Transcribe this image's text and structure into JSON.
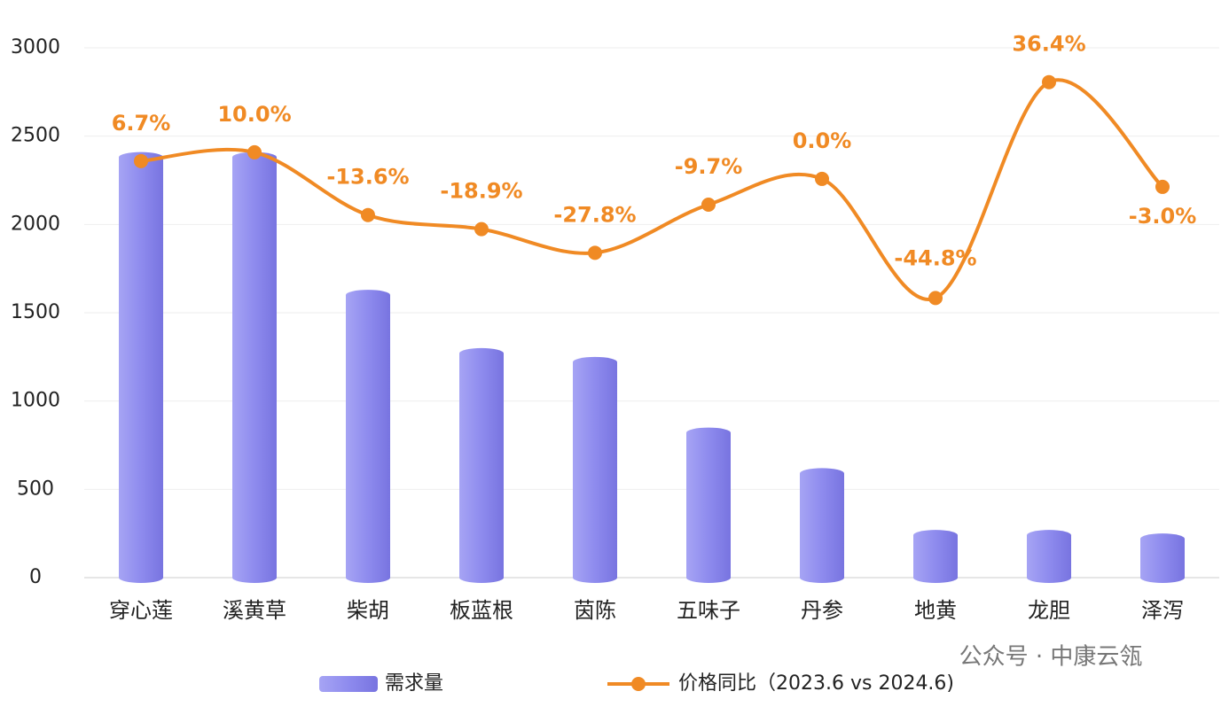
{
  "chart_data": {
    "type": "bar-line",
    "categories": [
      "穿心莲",
      "溪黄草",
      "柴胡",
      "板蓝根",
      "茵陈",
      "五味子",
      "丹参",
      "地黄",
      "龙胆",
      "泽泻"
    ],
    "series": [
      {
        "name": "需求量",
        "type": "bar",
        "color": "#8b88ec",
        "values": [
          2410,
          2410,
          1630,
          1300,
          1250,
          850,
          620,
          270,
          270,
          250
        ]
      },
      {
        "name": "价格同比（2023.6 vs 2024.6)",
        "type": "line",
        "axis": "y2",
        "color": "#f08a24",
        "values": [
          6.7,
          10.0,
          -13.6,
          -18.9,
          -27.8,
          -9.7,
          0.0,
          -44.8,
          36.4,
          -3.0
        ],
        "value_labels": [
          "6.7%",
          "10.0%",
          "-13.6%",
          "-18.9%",
          "-27.8%",
          "-9.7%",
          "0.0%",
          "-44.8%",
          "36.4%",
          "-3.0%"
        ]
      }
    ],
    "ylim": [
      0,
      3000
    ],
    "yticks": [
      0,
      500,
      1000,
      1500,
      2000,
      2500,
      3000
    ],
    "y2lim": [
      -150,
      49.3
    ],
    "grid": true,
    "legend": "bottom",
    "watermark": "公众号 · 中康云瓴"
  }
}
